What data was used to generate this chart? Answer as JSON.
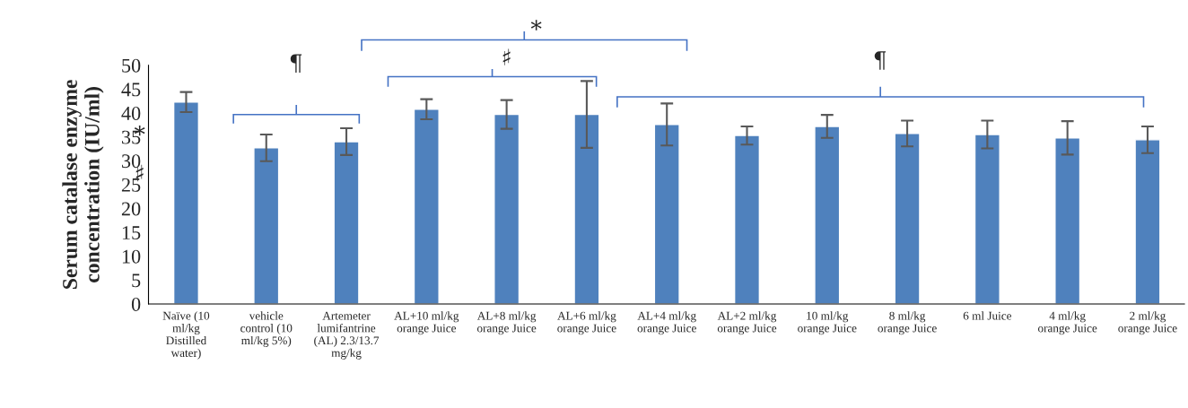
{
  "chart_data": {
    "type": "bar",
    "ylabel": "Serum catalase enzyme concentration (IU/ml)",
    "categories": [
      "Naïve (10 ml/kg Distilled water)",
      "vehicle control (10 ml/kg 5%)",
      "Artemeter lumifantrine (AL) 2.3/13.7 mg/kg",
      "AL+10 ml/kg orange Juice",
      "AL+8 ml/kg orange Juice",
      "AL+6 ml/kg orange Juice",
      "AL+4 ml/kg orange Juice",
      "AL+2 ml/kg orange Juice",
      "10 ml/kg orange Juice",
      "8 ml/kg orange Juice",
      "6 ml Juice",
      "4 ml/kg orange Juice",
      "2 ml/kg orange Juice"
    ],
    "values": [
      42.3,
      32.7,
      34.0,
      40.8,
      39.7,
      39.7,
      37.6,
      35.3,
      37.2,
      35.7,
      35.5,
      34.8,
      34.4
    ],
    "errors": [
      2.1,
      2.8,
      2.8,
      2.1,
      3.0,
      7.0,
      4.4,
      1.9,
      2.4,
      2.7,
      2.9,
      3.5,
      2.8
    ],
    "color": "#4f81bd",
    "ylim": [
      0,
      50
    ],
    "yticks": [
      0,
      5,
      10,
      15,
      20,
      25,
      30,
      35,
      40,
      45,
      50
    ],
    "grid": false,
    "legend": false,
    "annotations": [
      "¶",
      "♯",
      "*",
      "¶",
      "*",
      "♯"
    ]
  }
}
